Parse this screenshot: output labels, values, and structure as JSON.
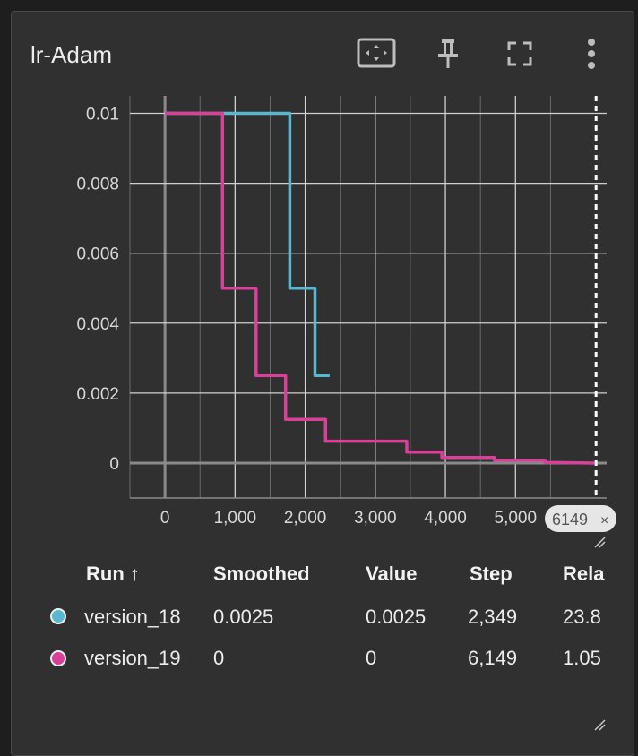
{
  "card": {
    "title": "lr-Adam"
  },
  "chart_data": {
    "type": "line",
    "xlabel": "",
    "ylabel": "",
    "xlim": [
      -500,
      6300
    ],
    "ylim": [
      -0.001,
      0.0105
    ],
    "x_ticks": [
      "0",
      "1,000",
      "2,000",
      "3,000",
      "4,000",
      "5,000"
    ],
    "y_ticks": [
      "0.01",
      "0.008",
      "0.006",
      "0.004",
      "0.002",
      "0"
    ],
    "hover_step_label": "6149",
    "hover_step": 6149,
    "series": [
      {
        "color": "#59b7cf",
        "x": [
          0,
          1780,
          1780,
          2140,
          2140,
          2349
        ],
        "y": [
          0.01,
          0.01,
          0.005,
          0.005,
          0.0025,
          0.0025
        ]
      },
      {
        "color": "#d9409a",
        "x": [
          0,
          820,
          820,
          1300,
          1300,
          1720,
          1720,
          2290,
          2290,
          3450,
          3450,
          3950,
          3950,
          4700,
          4700,
          5420,
          5420,
          6149
        ],
        "y": [
          0.01,
          0.01,
          0.005,
          0.005,
          0.0025,
          0.0025,
          0.00125,
          0.00125,
          0.000625,
          0.000625,
          0.0003125,
          0.0003125,
          0.00016,
          0.00016,
          8e-05,
          8e-05,
          2e-05,
          0.0
        ]
      }
    ]
  },
  "table": {
    "headers": [
      "Run ↑",
      "Smoothed",
      "Value",
      "Step",
      "Rela"
    ],
    "rows": [
      {
        "run": "version_18",
        "smoothed": "0.0025",
        "value": "0.0025",
        "step": "2,349",
        "relative": "23.8",
        "color": "#59b7cf"
      },
      {
        "run": "version_19",
        "smoothed": "0",
        "value": "0",
        "step": "6,149",
        "relative": "1.05",
        "color": "#d9409a"
      }
    ]
  },
  "icons": [
    "fit-domain-icon",
    "pin-icon",
    "fullscreen-icon",
    "more-vert-icon",
    "resize-handle-icon"
  ]
}
